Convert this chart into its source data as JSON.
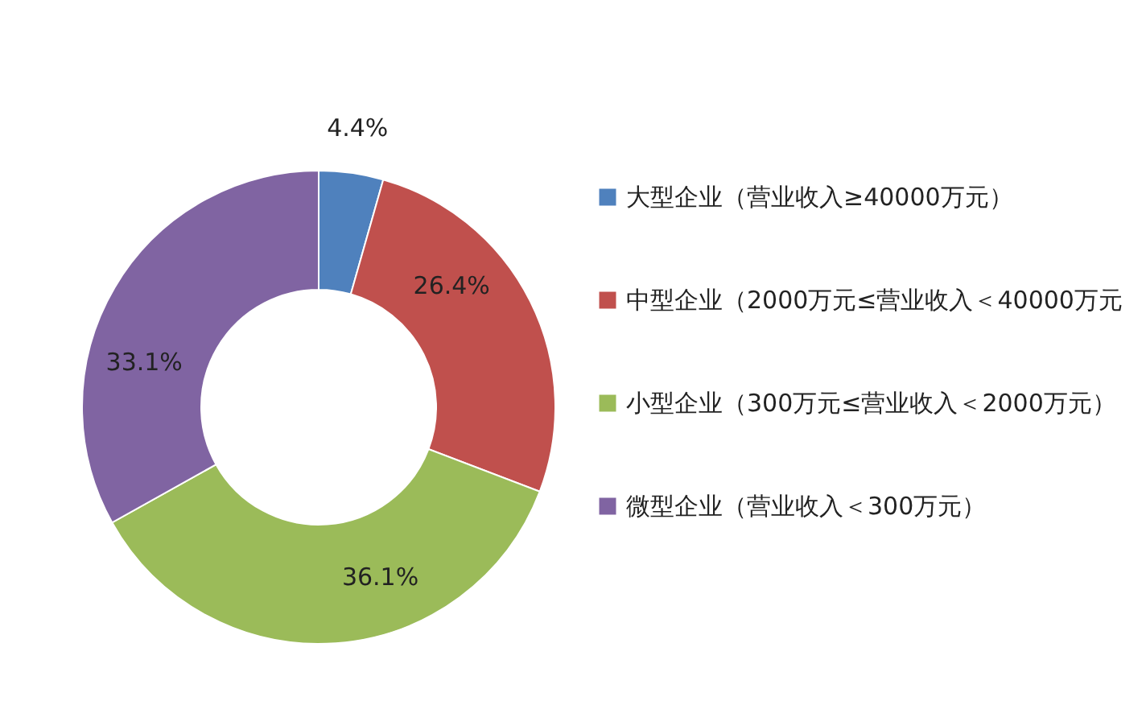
{
  "chart_data": {
    "type": "donut",
    "categories": [
      "大型企业（营业收入≥40000万元）",
      "中型企业（2000万元≤营业收入＜40000万元",
      "小型企业（300万元≤营业收入＜2000万元）",
      "微型企业（营业收入＜300万元）"
    ],
    "values": [
      4.4,
      26.4,
      36.1,
      33.1
    ],
    "colors": [
      "#4f81bd",
      "#c0504d",
      "#9bbb59",
      "#8064a2"
    ],
    "value_labels": [
      "4.4%",
      "26.4%",
      "36.1%",
      "33.1%"
    ],
    "legend": "right"
  }
}
